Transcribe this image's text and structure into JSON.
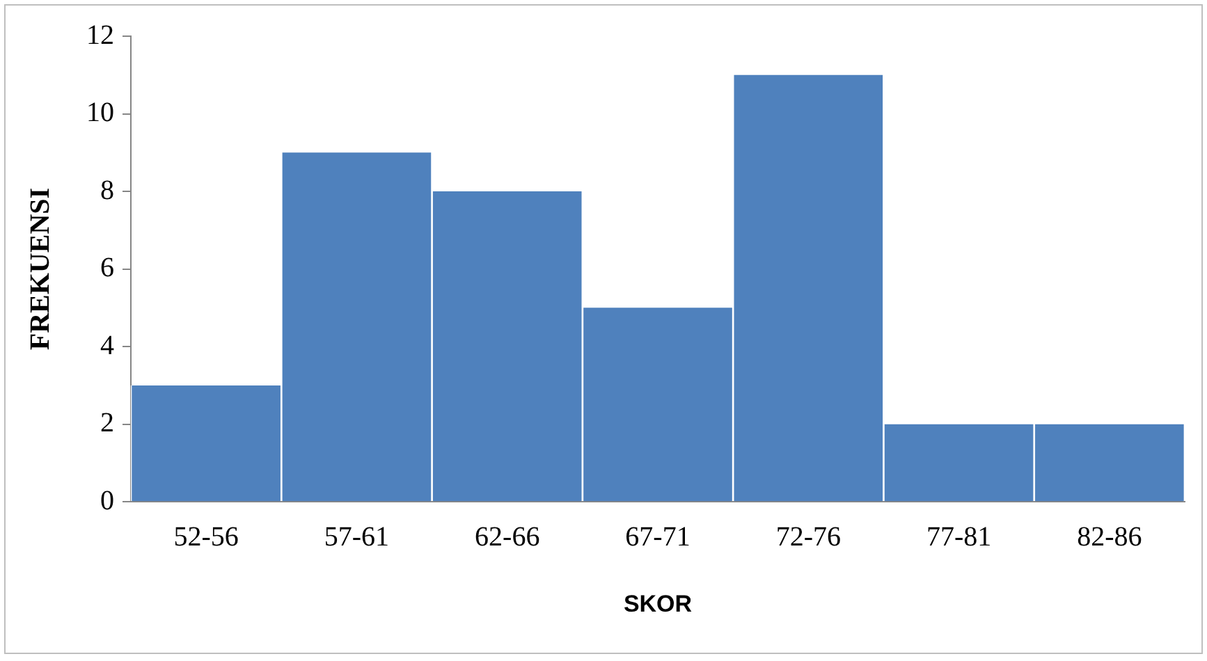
{
  "chart_data": {
    "type": "bar",
    "xlabel": "SKOR",
    "ylabel": "FREKUENSI",
    "categories": [
      "52-56",
      "57-61",
      "62-66",
      "67-71",
      "72-76",
      "77-81",
      "82-86"
    ],
    "values": [
      3,
      9,
      8,
      5,
      11,
      2,
      2
    ],
    "color": "#4f81bd",
    "ylim": [
      0,
      12
    ],
    "yticks": [
      0,
      2,
      4,
      6,
      8,
      10,
      12
    ],
    "grid": false,
    "legend": false
  }
}
